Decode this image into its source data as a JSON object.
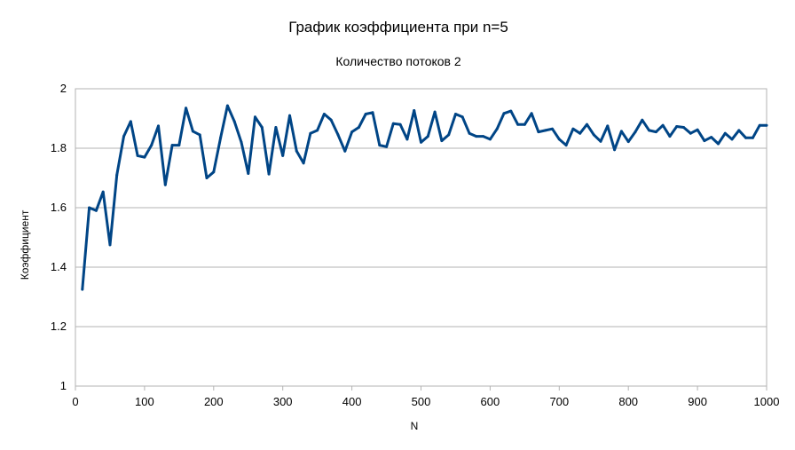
{
  "chart_data": {
    "type": "line",
    "title": "График коэффициента при n=5",
    "subtitle": "Количество потоков 2",
    "xlabel": "N",
    "ylabel": "Коэффициент",
    "xlim": [
      0,
      1000
    ],
    "ylim": [
      1,
      2
    ],
    "x_ticks": [
      0,
      100,
      200,
      300,
      400,
      500,
      600,
      700,
      800,
      900,
      1000
    ],
    "y_ticks": [
      1,
      1.2,
      1.4,
      1.6,
      1.8,
      2
    ],
    "y_tick_labels": [
      "1",
      "1.2",
      "1.4",
      "1.6",
      "1.8",
      "2"
    ],
    "grid": "horizontal",
    "legend": "none",
    "line_color": "#004586",
    "series": [
      {
        "x": [
          10,
          20,
          30,
          40,
          50,
          60,
          70,
          80,
          90,
          100,
          110,
          120,
          130,
          140,
          150,
          160,
          170,
          180,
          190,
          200,
          210,
          220,
          230,
          240,
          250,
          260,
          270,
          280,
          290,
          300,
          310,
          320,
          330,
          340,
          350,
          360,
          370,
          380,
          390,
          400,
          410,
          420,
          430,
          440,
          450,
          460,
          470,
          480,
          490,
          500,
          510,
          520,
          530,
          540,
          550,
          560,
          570,
          580,
          590,
          600,
          610,
          620,
          630,
          640,
          650,
          660,
          670,
          680,
          690,
          700,
          710,
          720,
          730,
          740,
          750,
          760,
          770,
          780,
          790,
          800,
          810,
          820,
          830,
          840,
          850,
          860,
          870,
          880,
          890,
          900,
          910,
          920,
          930,
          940,
          950,
          960,
          970,
          980,
          990,
          1000
        ],
        "values": [
          1.325,
          1.6,
          1.59,
          1.653,
          1.475,
          1.71,
          1.84,
          1.89,
          1.775,
          1.77,
          1.81,
          1.875,
          1.677,
          1.81,
          1.81,
          1.935,
          1.857,
          1.845,
          1.7,
          1.72,
          1.835,
          1.943,
          1.89,
          1.82,
          1.715,
          1.905,
          1.87,
          1.713,
          1.87,
          1.775,
          1.91,
          1.79,
          1.75,
          1.85,
          1.86,
          1.915,
          1.895,
          1.845,
          1.79,
          1.855,
          1.87,
          1.915,
          1.92,
          1.81,
          1.805,
          1.883,
          1.88,
          1.83,
          1.927,
          1.82,
          1.84,
          1.922,
          1.825,
          1.845,
          1.915,
          1.905,
          1.85,
          1.84,
          1.84,
          1.83,
          1.865,
          1.917,
          1.925,
          1.88,
          1.88,
          1.917,
          1.855,
          1.86,
          1.865,
          1.83,
          1.81,
          1.865,
          1.85,
          1.88,
          1.845,
          1.823,
          1.875,
          1.795,
          1.857,
          1.822,
          1.855,
          1.895,
          1.86,
          1.855,
          1.877,
          1.84,
          1.873,
          1.87,
          1.85,
          1.862,
          1.825,
          1.837,
          1.815,
          1.85,
          1.83,
          1.86,
          1.835,
          1.835,
          1.877,
          1.877
        ]
      }
    ]
  }
}
